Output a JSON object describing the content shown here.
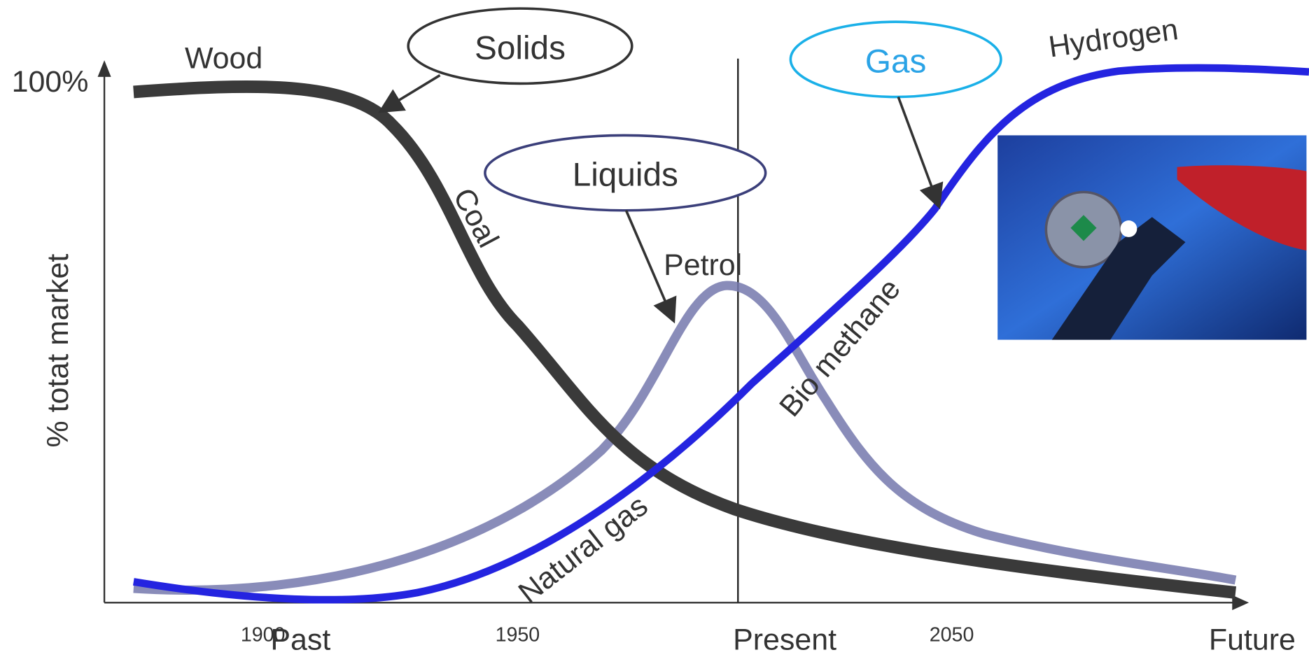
{
  "y_axis": {
    "top_label": "100%",
    "title": "% totat market"
  },
  "x_axis": {
    "labels": [
      "1900",
      "Past",
      "1950",
      "Present",
      "2050",
      "Future"
    ]
  },
  "curve_labels": {
    "wood": "Wood",
    "coal": "Coal",
    "petrol": "Petrol",
    "natural_gas": "Natural gas",
    "biomethane": "Bio methane",
    "hydrogen": "Hydrogen"
  },
  "groups": {
    "solids": "Solids",
    "liquids": "Liquids",
    "gas": "Gas"
  }
}
